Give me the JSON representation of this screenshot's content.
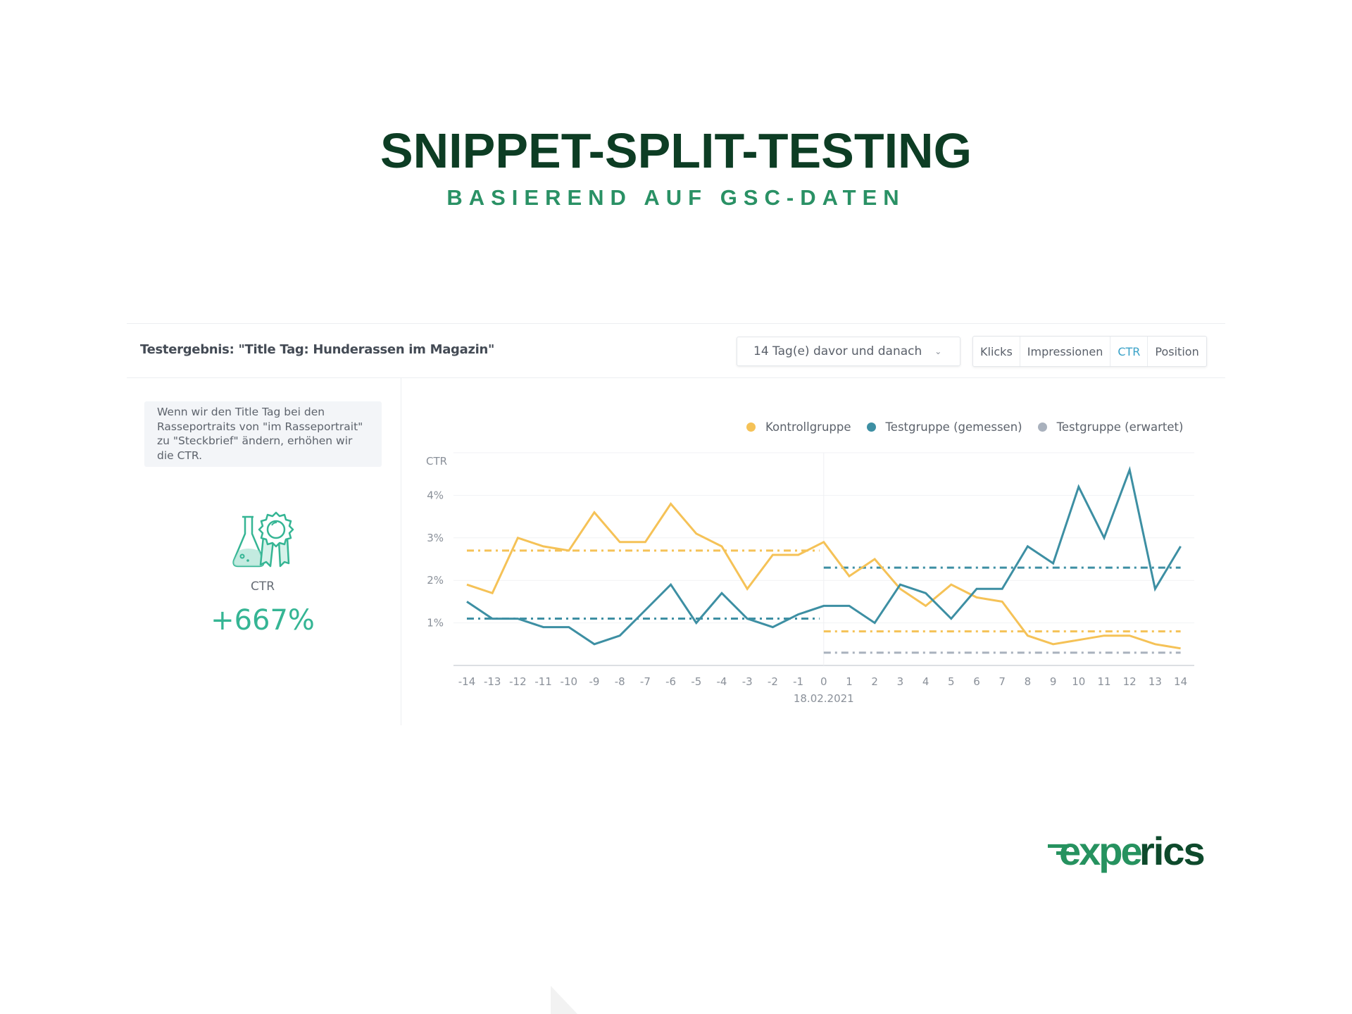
{
  "hero": {
    "title": "SNIPPET-SPLIT-TESTING",
    "subtitle": "BASIEREND AUF GSC-DATEN",
    "title_color": "#0d3d24",
    "subtitle_color": "#2a9165"
  },
  "report": {
    "title": "Testergebnis: \"Title Tag: Hunderassen im Magazin\"",
    "range_select": {
      "value": "14 Tag(e) davor und danach",
      "icon": "chevron-down-icon"
    },
    "metric_tabs": [
      {
        "label": "Klicks",
        "active": false
      },
      {
        "label": "Impressionen",
        "active": false
      },
      {
        "label": "CTR",
        "active": true
      },
      {
        "label": "Position",
        "active": false
      }
    ]
  },
  "summary": {
    "hypothesis": "Wenn wir den Title Tag bei den Rasseportraits von \"im Rasseportrait\" zu \"Steckbrief\" ändern, erhöhen wir die CTR.",
    "icon": "flask-award-icon",
    "metric_label": "CTR",
    "metric_value": "+667%",
    "accent_color": "#35b594"
  },
  "legend": [
    {
      "label": "Kontrollgruppe",
      "color": "#f5c257"
    },
    {
      "label": "Testgruppe (gemessen)",
      "color": "#3d8fa3"
    },
    {
      "label": "Testgruppe (erwartet)",
      "color": "#a9b1bd"
    }
  ],
  "chart_data": {
    "type": "line",
    "title": "",
    "ylabel": "CTR",
    "xlabel": "18.02.2021",
    "x": [
      -14,
      -13,
      -12,
      -11,
      -10,
      -9,
      -8,
      -7,
      -6,
      -5,
      -4,
      -3,
      -2,
      -1,
      0,
      1,
      2,
      3,
      4,
      5,
      6,
      7,
      8,
      9,
      10,
      11,
      12,
      13,
      14
    ],
    "x_tick_labels": [
      "-14",
      "-13",
      "-12",
      "-11",
      "-10",
      "-9",
      "-8",
      "-7",
      "-6",
      "-5",
      "-4",
      "-3",
      "-2",
      "-1",
      "0",
      "1",
      "2",
      "3",
      "4",
      "5",
      "6",
      "7",
      "8",
      "9",
      "10",
      "11",
      "12",
      "13",
      "14"
    ],
    "y_tick_labels": [
      "1%",
      "2%",
      "3%",
      "4%"
    ],
    "ylim": [
      0,
      5
    ],
    "grid": true,
    "legend_position": "top-right",
    "split_marker": {
      "x": 0,
      "label": "18.02.2021"
    },
    "series": [
      {
        "name": "Kontrollgruppe",
        "color": "#f5c257",
        "values": [
          1.9,
          1.7,
          3.0,
          2.8,
          2.7,
          3.6,
          2.9,
          2.9,
          3.8,
          3.1,
          2.8,
          1.8,
          2.6,
          2.6,
          2.9,
          2.1,
          2.5,
          1.8,
          1.4,
          1.9,
          1.6,
          1.5,
          0.7,
          0.5,
          0.6,
          0.7,
          0.7,
          0.5,
          0.4
        ]
      },
      {
        "name": "Testgruppe (gemessen)",
        "color": "#3d8fa3",
        "values": [
          1.5,
          1.1,
          1.1,
          0.9,
          0.9,
          0.5,
          0.7,
          1.3,
          1.9,
          1.0,
          1.7,
          1.1,
          0.9,
          1.2,
          1.4,
          1.4,
          1.0,
          1.9,
          1.7,
          1.1,
          1.8,
          1.8,
          2.8,
          2.4,
          4.2,
          3.0,
          4.6,
          1.8,
          2.8
        ]
      }
    ],
    "reference_lines": [
      {
        "name": "Kontrollgruppe Ø davor",
        "series": "Kontrollgruppe",
        "from": -14,
        "to": 0,
        "value": 2.7,
        "style": "dash-dot",
        "color": "#f5c257"
      },
      {
        "name": "Testgruppe Ø davor",
        "series": "Testgruppe (gemessen)",
        "from": -14,
        "to": 0,
        "value": 1.1,
        "style": "dash-dot",
        "color": "#3d8fa3"
      },
      {
        "name": "Testgruppe (gemessen) Ø danach",
        "series": "Testgruppe (gemessen)",
        "from": 0,
        "to": 14,
        "value": 2.3,
        "style": "dash-dot",
        "color": "#3d8fa3"
      },
      {
        "name": "Kontrollgruppe Ø danach",
        "series": "Kontrollgruppe",
        "from": 0,
        "to": 14,
        "value": 0.8,
        "style": "dash-dot",
        "color": "#f5c257"
      },
      {
        "name": "Testgruppe (erwartet) Ø danach",
        "series": "Testgruppe (erwartet)",
        "from": 0,
        "to": 14,
        "value": 0.3,
        "style": "dash-dot",
        "color": "#a9b1bd"
      }
    ]
  },
  "brand": {
    "logo_text_a": "expe",
    "logo_text_b": "rics",
    "color_a": "#26925f",
    "color_b": "#0e4a2c"
  }
}
